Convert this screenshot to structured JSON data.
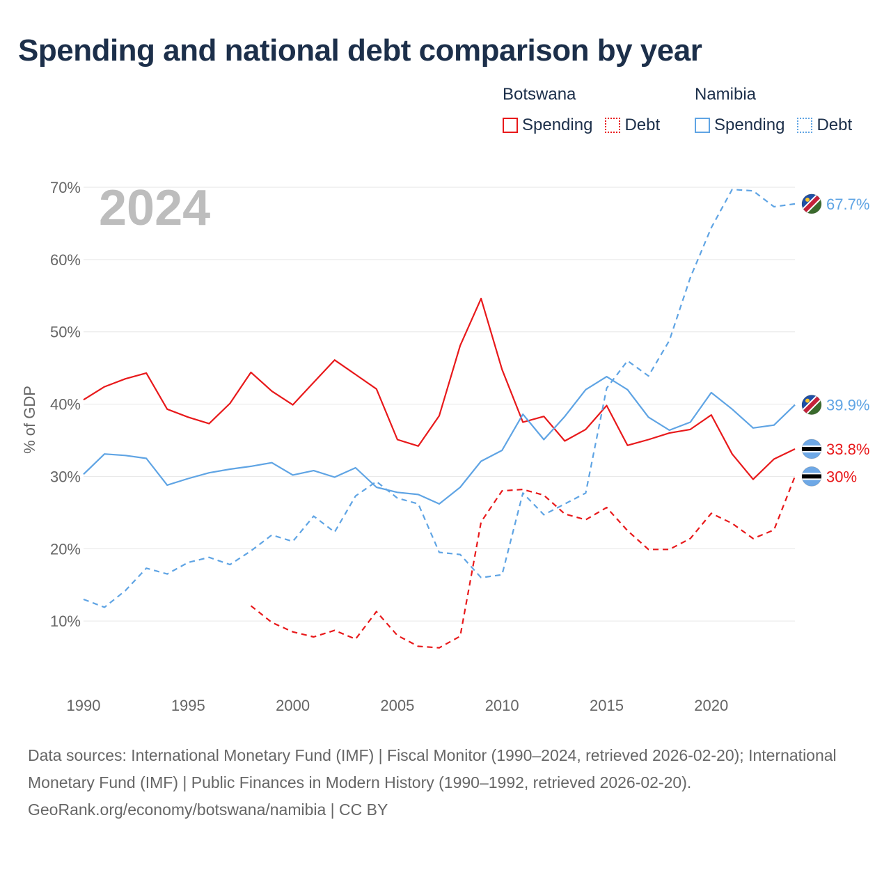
{
  "title": "Spending and national debt comparison by year",
  "legend": {
    "groups": [
      {
        "name": "Botswana",
        "items": [
          {
            "label": "Spending",
            "color": "#e8191b",
            "style": "solid"
          },
          {
            "label": "Debt",
            "color": "#e8191b",
            "style": "dotted"
          }
        ]
      },
      {
        "name": "Namibia",
        "items": [
          {
            "label": "Spending",
            "color": "#5fa4e4",
            "style": "solid"
          },
          {
            "label": "Debt",
            "color": "#5fa4e4",
            "style": "dotted"
          }
        ]
      }
    ]
  },
  "chart_data": {
    "type": "line",
    "title": "Spending and national debt comparison by year",
    "year_label": "2024",
    "ylabel": "% of GDP",
    "xlabel": "",
    "xlim": [
      1990,
      2024
    ],
    "ylim": [
      0,
      70
    ],
    "x_ticks": [
      "1990",
      "1995",
      "2000",
      "2005",
      "2010",
      "2015",
      "2020"
    ],
    "x_tick_values": [
      1990,
      1995,
      2000,
      2005,
      2010,
      2015,
      2020
    ],
    "y_ticks": [
      "10%",
      "20%",
      "30%",
      "40%",
      "50%",
      "60%",
      "70%"
    ],
    "y_tick_values": [
      10,
      20,
      30,
      40,
      50,
      60,
      70
    ],
    "series": [
      {
        "name": "Botswana Spending",
        "color": "#e8191b",
        "dash": "solid",
        "end_label": "33.8%",
        "flag": "botswana",
        "x": [
          1990,
          1991,
          1992,
          1993,
          1994,
          1995,
          1996,
          1997,
          1998,
          1999,
          2000,
          2001,
          2002,
          2003,
          2004,
          2005,
          2006,
          2007,
          2008,
          2009,
          2010,
          2011,
          2012,
          2013,
          2014,
          2015,
          2016,
          2017,
          2018,
          2019,
          2020,
          2021,
          2022,
          2023,
          2024
        ],
        "values": [
          40.6,
          42.4,
          43.5,
          44.3,
          39.3,
          38.2,
          37.3,
          40.1,
          44.4,
          41.8,
          39.9,
          43.0,
          46.1,
          44.1,
          42.1,
          35.1,
          34.2,
          38.4,
          48.1,
          54.6,
          44.8,
          37.5,
          38.3,
          34.9,
          36.5,
          39.8,
          34.3,
          35.1,
          36.0,
          36.5,
          38.5,
          33.1,
          29.6,
          32.4,
          33.8
        ]
      },
      {
        "name": "Botswana Debt",
        "color": "#e8191b",
        "dash": "dashed",
        "end_label": "30%",
        "flag": "botswana",
        "x": [
          1998,
          1999,
          2000,
          2001,
          2002,
          2003,
          2004,
          2005,
          2006,
          2007,
          2008,
          2009,
          2010,
          2011,
          2012,
          2013,
          2014,
          2015,
          2016,
          2017,
          2018,
          2019,
          2020,
          2021,
          2022,
          2023,
          2024
        ],
        "values": [
          12.1,
          9.8,
          8.5,
          7.8,
          8.7,
          7.5,
          11.3,
          8.0,
          6.5,
          6.3,
          7.9,
          23.7,
          28.0,
          28.2,
          27.4,
          24.8,
          24.0,
          25.7,
          22.5,
          19.9,
          19.9,
          21.4,
          24.9,
          23.5,
          21.4,
          22.6,
          30.0
        ]
      },
      {
        "name": "Namibia Spending",
        "color": "#5fa4e4",
        "dash": "solid",
        "end_label": "39.9%",
        "flag": "namibia",
        "x": [
          1990,
          1991,
          1992,
          1993,
          1994,
          1995,
          1996,
          1997,
          1998,
          1999,
          2000,
          2001,
          2002,
          2003,
          2004,
          2005,
          2006,
          2007,
          2008,
          2009,
          2010,
          2011,
          2012,
          2013,
          2014,
          2015,
          2016,
          2017,
          2018,
          2019,
          2020,
          2021,
          2022,
          2023,
          2024
        ],
        "values": [
          30.3,
          33.1,
          32.9,
          32.5,
          28.8,
          29.7,
          30.5,
          31.0,
          31.4,
          31.9,
          30.2,
          30.8,
          29.9,
          31.2,
          28.5,
          27.8,
          27.5,
          26.2,
          28.5,
          32.1,
          33.6,
          38.6,
          35.1,
          38.3,
          42.0,
          43.8,
          42.0,
          38.2,
          36.4,
          37.5,
          41.6,
          39.3,
          36.7,
          37.1,
          39.9
        ]
      },
      {
        "name": "Namibia Debt",
        "color": "#5fa4e4",
        "dash": "dashed",
        "end_label": "67.7%",
        "flag": "namibia",
        "x": [
          1990,
          1991,
          1992,
          1993,
          1994,
          1995,
          1996,
          1997,
          1998,
          1999,
          2000,
          2001,
          2002,
          2003,
          2004,
          2005,
          2006,
          2007,
          2008,
          2009,
          2010,
          2011,
          2012,
          2013,
          2014,
          2015,
          2016,
          2017,
          2018,
          2019,
          2020,
          2021,
          2022,
          2023,
          2024
        ],
        "values": [
          13.0,
          11.9,
          14.2,
          17.3,
          16.5,
          18.1,
          18.8,
          17.8,
          19.7,
          21.9,
          21.0,
          24.5,
          22.3,
          27.3,
          29.3,
          27.0,
          26.2,
          19.5,
          19.2,
          16.0,
          16.4,
          27.7,
          24.7,
          26.2,
          27.7,
          42.2,
          46.0,
          43.9,
          48.8,
          57.5,
          64.4,
          69.7,
          69.5,
          67.3,
          67.7
        ]
      }
    ]
  },
  "footer": {
    "sources": "Data sources: International Monetary Fund (IMF) | Fiscal Monitor (1990–2024, retrieved 2026-02-20); International Monetary Fund (IMF) | Public Finances in Modern History (1990–1992, retrieved 2026-02-20).",
    "credit": "GeoRank.org/economy/botswana/namibia | CC BY"
  }
}
